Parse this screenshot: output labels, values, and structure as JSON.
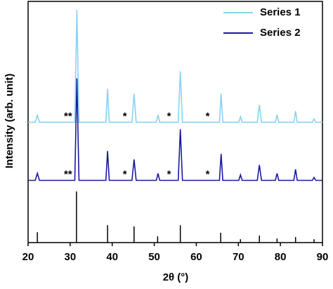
{
  "chart_data": {
    "type": "line",
    "x_label": "2θ (°)",
    "y_label": "Intensity (arb. unit)",
    "xlim": [
      20,
      90
    ],
    "xticks": [
      20,
      30,
      40,
      50,
      60,
      70,
      80,
      90
    ],
    "ylim": [
      0,
      100
    ],
    "legend": "upper right",
    "x": [
      20,
      21.7,
      22.2,
      22.7,
      31.1,
      31.6,
      32.1,
      38.5,
      38.9,
      39.3,
      44.7,
      45.2,
      45.7,
      50.5,
      50.9,
      51.3,
      55.7,
      56.2,
      56.7,
      65.5,
      65.9,
      66.3,
      70.1,
      70.5,
      70.9,
      74.5,
      75.0,
      75.5,
      78.8,
      79.2,
      79.6,
      83.2,
      83.6,
      84.0,
      87.6,
      88.0,
      88.4,
      90
    ],
    "series": [
      {
        "name": "Series 1",
        "color": "#87d3f0",
        "values": [
          49.9,
          49.9,
          52.8,
          49.9,
          49.9,
          96.5,
          49.9,
          49.9,
          63.8,
          49.9,
          49.9,
          61.7,
          49.9,
          49.9,
          53.0,
          49.9,
          49.9,
          71.0,
          49.9,
          49.9,
          61.7,
          49.9,
          49.9,
          52.2,
          49.9,
          49.9,
          57.1,
          49.9,
          49.9,
          53.0,
          49.9,
          49.9,
          54.5,
          49.9,
          49.9,
          51.3,
          49.9,
          49.9
        ]
      },
      {
        "name": "Series 2",
        "color": "#1a1aa0",
        "values": [
          25.8,
          25.8,
          28.7,
          25.8,
          25.8,
          68.1,
          25.8,
          25.8,
          38.0,
          25.8,
          25.8,
          34.5,
          25.8,
          25.8,
          28.7,
          25.8,
          25.8,
          47.0,
          25.8,
          25.8,
          36.8,
          25.8,
          25.8,
          28.1,
          25.8,
          25.8,
          32.2,
          25.8,
          25.8,
          28.7,
          25.8,
          25.8,
          30.4,
          25.8,
          25.8,
          27.0,
          25.8,
          25.8
        ]
      }
    ],
    "sticks": {
      "color": "#000000",
      "x": [
        22.2,
        31.5,
        38.9,
        45.2,
        50.8,
        56.2,
        65.8,
        70.5,
        75.0,
        79.2,
        83.6,
        88.0
      ],
      "values": [
        4.3,
        21.2,
        7.2,
        6.7,
        2.6,
        7.2,
        4.1,
        1.4,
        2.9,
        1.7,
        2.3,
        1.4
      ]
    },
    "annotations": [
      {
        "text": "**",
        "x": 29.5,
        "y": 52.2
      },
      {
        "text": "*",
        "x": 43.0,
        "y": 52.2
      },
      {
        "text": "*",
        "x": 53.5,
        "y": 52.2
      },
      {
        "text": "*",
        "x": 62.7,
        "y": 52.2
      },
      {
        "text": "**",
        "x": 29.5,
        "y": 28.1
      },
      {
        "text": "*",
        "x": 43.0,
        "y": 28.1
      },
      {
        "text": "*",
        "x": 53.5,
        "y": 28.1
      },
      {
        "text": "*",
        "x": 62.7,
        "y": 28.1
      }
    ]
  }
}
